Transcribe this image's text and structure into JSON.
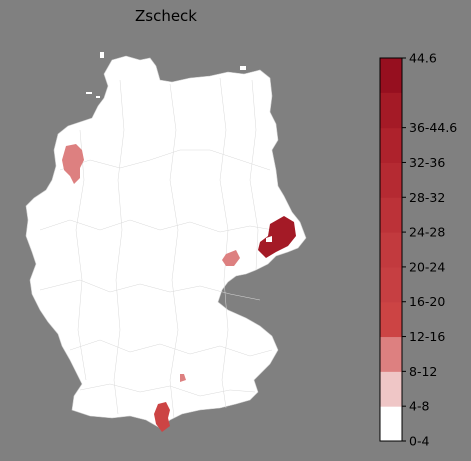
{
  "title": "Zscheck",
  "colors": {
    "background": "#808080",
    "land": "#ffffff",
    "borders": "#d9d9d9"
  },
  "legend": {
    "bins": [
      {
        "label": "0-4",
        "color": "#ffffff"
      },
      {
        "label": "4-8",
        "color": "#efc6c6"
      },
      {
        "label": "8-12",
        "color": "#dd8080"
      },
      {
        "label": "12-16",
        "color": "#cc4444"
      },
      {
        "label": "16-20",
        "color": "#c63f42"
      },
      {
        "label": "20-24",
        "color": "#c23a3e"
      },
      {
        "label": "24-28",
        "color": "#bc3238"
      },
      {
        "label": "28-32",
        "color": "#b52a32"
      },
      {
        "label": "32-36",
        "color": "#ae222c"
      },
      {
        "label": "36-44.6",
        "color": "#a41a26"
      }
    ],
    "max_label": "44.6",
    "top_color": "#960f1f"
  },
  "highlighted_regions": [
    {
      "name": "northwest",
      "value_bin": "8-12",
      "color": "#dd8080"
    },
    {
      "name": "east-saxony",
      "value_bin": "36-44.6",
      "color": "#a41a26"
    },
    {
      "name": "central-saxony",
      "value_bin": "8-12",
      "color": "#dd8080"
    },
    {
      "name": "south-bavaria",
      "value_bin": "12-16",
      "color": "#cc4444"
    },
    {
      "name": "small-bavaria",
      "value_bin": "8-12",
      "color": "#dd8080"
    }
  ]
}
